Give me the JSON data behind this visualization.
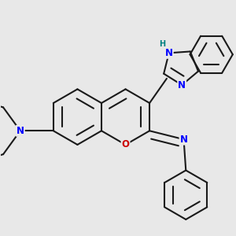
{
  "bg_color": "#e8e8e8",
  "bond_color": "#1a1a1a",
  "bond_width": 1.5,
  "N_color": "#0000ff",
  "O_color": "#cc0000",
  "H_color": "#008080",
  "font_size": 8.5,
  "fig_width": 3.0,
  "fig_height": 3.0,
  "xlim": [
    -0.1,
    1.0
  ],
  "ylim": [
    0.0,
    1.05
  ]
}
